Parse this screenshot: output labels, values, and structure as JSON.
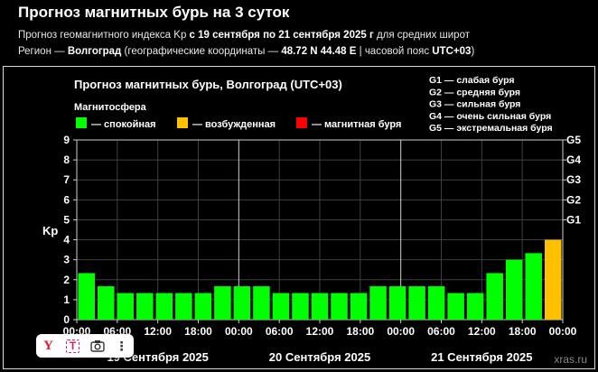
{
  "page": {
    "title": "Прогноз магнитных бурь на 3 суток",
    "sub1_prefix": "Прогноз геомагнитного индекса Kp ",
    "sub1_bold": "с 19 сентября по 21 сентября 2025 г",
    "sub1_suffix": " для средних широт",
    "sub2_prefix": "Регион — ",
    "sub2_region": "Волгоград",
    "sub2_mid": " (географические координаты — ",
    "sub2_coords": "48.72 N 44.48 E",
    "sub2_tz_prefix": " | часовой пояс ",
    "sub2_tz": "UTC+03",
    "sub2_end": ")"
  },
  "chart_data": {
    "type": "bar",
    "title": "Прогноз магнитных бурь, Волгоград (UTC+03)",
    "legend_title": "Магнитосфера",
    "legend": [
      {
        "label": "— спокойная",
        "color": "#00ff00"
      },
      {
        "label": "— возбужденная",
        "color": "#ffc000"
      },
      {
        "label": "— магнитная буря",
        "color": "#ff0000"
      }
    ],
    "g_scale": [
      "G1 — слабая буря",
      "G2 — средняя буря",
      "G3 — сильная буря",
      "G4 — очень сильная буря",
      "G5 — экстремальная буря"
    ],
    "ylabel": "Kp",
    "ylim": [
      0,
      9
    ],
    "yticks": [
      "0",
      "1",
      "2",
      "3",
      "4",
      "5",
      "6",
      "7",
      "8",
      "9"
    ],
    "right_ticks": [
      {
        "label": "G1",
        "kp": 5
      },
      {
        "label": "G2",
        "kp": 6
      },
      {
        "label": "G3",
        "kp": 7
      },
      {
        "label": "G4",
        "kp": 8
      },
      {
        "label": "G5",
        "kp": 9
      }
    ],
    "xticks": [
      "00:00",
      "06:00",
      "12:00",
      "18:00",
      "00:00",
      "06:00",
      "12:00",
      "18:00",
      "00:00",
      "06:00",
      "12:00",
      "18:00",
      "00:00"
    ],
    "days": [
      "19 Сентября 2025",
      "20 Сентября 2025",
      "21 Сентября 2025"
    ],
    "values": [
      2.33,
      1.67,
      1.33,
      1.33,
      1.33,
      1.33,
      1.33,
      1.67,
      1.67,
      1.67,
      1.33,
      1.33,
      1.33,
      1.33,
      1.33,
      1.67,
      1.67,
      1.67,
      1.67,
      1.33,
      1.33,
      2.33,
      3.0,
      3.33,
      4.0
    ],
    "colors": [
      "#00ff00",
      "#00ff00",
      "#00ff00",
      "#00ff00",
      "#00ff00",
      "#00ff00",
      "#00ff00",
      "#00ff00",
      "#00ff00",
      "#00ff00",
      "#00ff00",
      "#00ff00",
      "#00ff00",
      "#00ff00",
      "#00ff00",
      "#00ff00",
      "#00ff00",
      "#00ff00",
      "#00ff00",
      "#00ff00",
      "#00ff00",
      "#00ff00",
      "#00ff00",
      "#00ff00",
      "#ffc000"
    ],
    "grid": true,
    "watermark": "xras.ru"
  }
}
